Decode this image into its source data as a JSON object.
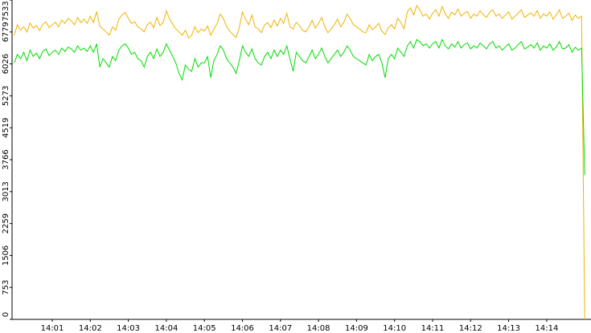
{
  "chart_data": {
    "type": "line",
    "categories": [
      null,
      null,
      null,
      null,
      null,
      null,
      null,
      null,
      null,
      null,
      null,
      null,
      "14:01",
      null,
      null,
      null,
      null,
      null,
      null,
      null,
      null,
      null,
      null,
      null,
      "14:02",
      null,
      null,
      null,
      null,
      null,
      null,
      null,
      null,
      null,
      null,
      null,
      "14:03",
      null,
      null,
      null,
      null,
      null,
      null,
      null,
      null,
      null,
      null,
      null,
      "14:04",
      null,
      null,
      null,
      null,
      null,
      null,
      null,
      null,
      null,
      null,
      null,
      "14:05",
      null,
      null,
      null,
      null,
      null,
      null,
      null,
      null,
      null,
      null,
      null,
      "14:06",
      null,
      null,
      null,
      null,
      null,
      null,
      null,
      null,
      null,
      null,
      null,
      "14:07",
      null,
      null,
      null,
      null,
      null,
      null,
      null,
      null,
      null,
      null,
      null,
      "14:08",
      null,
      null,
      null,
      null,
      null,
      null,
      null,
      null,
      null,
      null,
      null,
      "14:09",
      null,
      null,
      null,
      null,
      null,
      null,
      null,
      null,
      null,
      null,
      null,
      "14:10",
      null,
      null,
      null,
      null,
      null,
      null,
      null,
      null,
      null,
      null,
      null,
      "14:11",
      null,
      null,
      null,
      null,
      null,
      null,
      null,
      null,
      null,
      null,
      null,
      "14:12",
      null,
      null,
      null,
      null,
      null,
      null,
      null,
      null,
      null,
      null,
      null,
      "14:13",
      null,
      null,
      null,
      null,
      null,
      null,
      null,
      null,
      null,
      null,
      null,
      "14:14",
      null,
      null,
      null,
      null,
      null,
      null,
      null,
      null,
      null,
      null,
      null,
      null
    ],
    "series": [
      {
        "color": "#f0b400",
        "values": [
          6700,
          6950,
          6820,
          6900,
          6780,
          6990,
          6870,
          6930,
          6810,
          6960,
          7020,
          6880,
          6940,
          7010,
          6900,
          7060,
          6980,
          7100,
          7040,
          6950,
          7120,
          7000,
          7080,
          6980,
          7150,
          7000,
          7260,
          6920,
          6850,
          6780,
          6700,
          6900,
          6820,
          7080,
          7180,
          7240,
          7100,
          6980,
          7020,
          6900,
          6850,
          6780,
          6950,
          7010,
          6880,
          7120,
          6930,
          7010,
          7280,
          7090,
          6960,
          6850,
          6780,
          6700,
          6820,
          6640,
          6700,
          6900,
          6760,
          6850,
          6800,
          6920,
          6700,
          6850,
          6980,
          7200,
          7100,
          6900,
          6800,
          6720,
          6650,
          6880,
          7250,
          7080,
          6950,
          7180,
          6900,
          6850,
          6760,
          6950,
          7000,
          6880,
          7060,
          6920,
          7100,
          6980,
          7220,
          6900,
          6850,
          7010,
          6930,
          6820,
          6780,
          6900,
          7050,
          6870,
          6980,
          7120,
          6900,
          6760,
          6850,
          6950,
          7080,
          6900,
          7010,
          7200,
          7090,
          6950,
          6900,
          6850,
          6780,
          6760,
          6950,
          6830,
          6900,
          6980,
          6800,
          6720,
          6880,
          6950,
          6850,
          7100,
          7000,
          6850,
          7250,
          7350,
          7180,
          7400,
          7300,
          7150,
          7200,
          7080,
          7220,
          7300,
          7150,
          7380,
          7200,
          7100,
          7250,
          7180,
          7320,
          7150,
          7220,
          7260,
          7100,
          7200,
          7150,
          7280,
          7180,
          7120,
          7250,
          7300,
          7150,
          7200,
          7100,
          7180,
          7250,
          7080,
          7150,
          7220,
          7300,
          7120,
          7180,
          7230,
          7150,
          7280,
          7100,
          7200,
          7150,
          7250,
          7080,
          7180,
          7300,
          7100,
          7150,
          7220,
          7050,
          7180,
          7100,
          7150,
          0
        ]
      },
      {
        "color": "#00dd00",
        "values": [
          6050,
          6250,
          6150,
          6300,
          6100,
          6350,
          6200,
          6280,
          6150,
          6320,
          6380,
          6220,
          6300,
          6350,
          6250,
          6400,
          6320,
          6420,
          6380,
          6300,
          6450,
          6350,
          6400,
          6320,
          6450,
          6300,
          6500,
          5950,
          6150,
          6050,
          5950,
          6200,
          6100,
          6350,
          6450,
          6500,
          6400,
          6250,
          6300,
          6150,
          6100,
          5950,
          6200,
          6300,
          6150,
          6380,
          6200,
          6300,
          6500,
          6350,
          6200,
          6050,
          5800,
          5650,
          6000,
          5900,
          5850,
          6150,
          5950,
          6050,
          6050,
          6200,
          5700,
          6100,
          6250,
          6450,
          6350,
          6150,
          6050,
          5950,
          5800,
          6100,
          6450,
          6300,
          6200,
          6380,
          6150,
          6050,
          6000,
          6200,
          6300,
          6150,
          6350,
          6200,
          6350,
          6250,
          6450,
          6150,
          5850,
          6300,
          6200,
          6100,
          6050,
          6200,
          6350,
          6150,
          6250,
          6400,
          6200,
          6050,
          6150,
          6250,
          6350,
          6200,
          6300,
          6450,
          6350,
          6200,
          6150,
          6100,
          6050,
          6000,
          6250,
          6100,
          6200,
          6250,
          6050,
          5700,
          6150,
          6250,
          6150,
          6400,
          6300,
          6200,
          6450,
          6550,
          6400,
          6600,
          6550,
          6450,
          6500,
          6400,
          6500,
          6550,
          6400,
          6600,
          6450,
          6380,
          6500,
          6420,
          6550,
          6400,
          6480,
          6520,
          6380,
          6450,
          6400,
          6520,
          6450,
          6380,
          6500,
          6550,
          6400,
          6450,
          6350,
          6430,
          6500,
          6350,
          6400,
          6480,
          6550,
          6380,
          6420,
          6480,
          6400,
          6520,
          6350,
          6450,
          6400,
          6500,
          6350,
          6420,
          6550,
          6380,
          6400,
          6480,
          6300,
          6420,
          6350,
          6400,
          3400
        ]
      }
    ],
    "ylim": [
      0,
      7533
    ],
    "yticks": [
      0,
      753,
      1506,
      2259,
      3013,
      3766,
      4519,
      5273,
      6026,
      6779,
      7533
    ]
  }
}
